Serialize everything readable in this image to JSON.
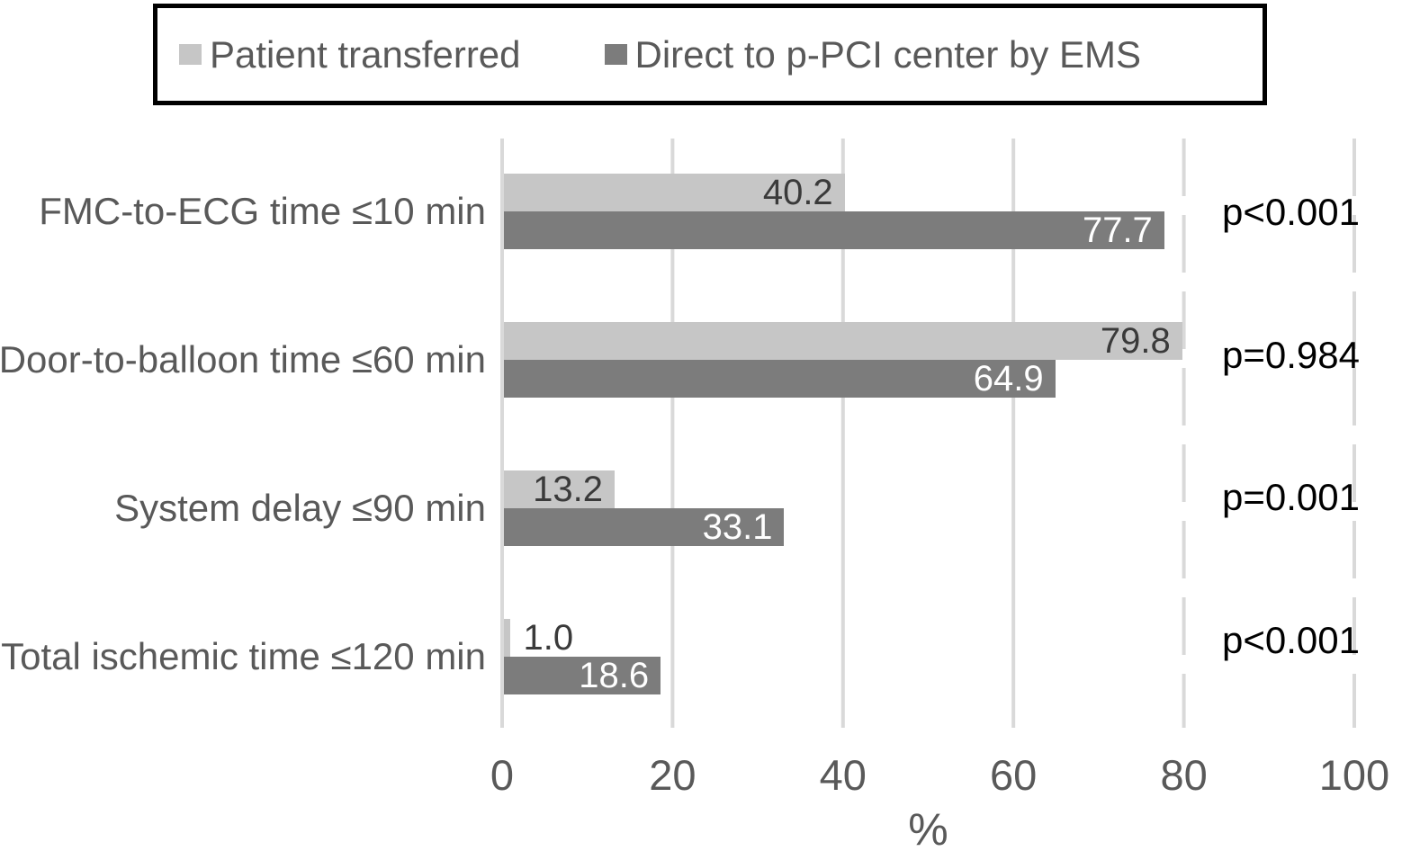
{
  "chart_data": {
    "type": "bar",
    "orientation": "horizontal",
    "categories": [
      "FMC-to-ECG time ≤10 min",
      "Door-to-balloon time ≤60 min",
      "System delay ≤90 min",
      "Total ischemic time ≤120 min"
    ],
    "series": [
      {
        "name": "Patient transferred",
        "color": "#c6c6c6",
        "value_label_color": "#3a3a3a",
        "values": [
          40.2,
          79.8,
          13.2,
          1.0
        ]
      },
      {
        "name": "Direct to p-PCI center by EMS",
        "color": "#7c7c7c",
        "value_label_color": "#ffffff",
        "values": [
          77.7,
          64.9,
          33.1,
          18.6
        ]
      }
    ],
    "p_values": [
      "p<0.001",
      "p=0.984",
      "p=0.001",
      "p<0.001"
    ],
    "xlabel": "%",
    "xlim": [
      0,
      100
    ],
    "xticks": [
      0,
      20,
      40,
      60,
      80,
      100
    ],
    "xtick_labels": [
      "0",
      "20",
      "40",
      "60",
      "80",
      "100"
    ],
    "grid": {
      "show": true,
      "color": "#d9d9d9",
      "solid_ticks": [
        0,
        20,
        40,
        60
      ],
      "dashed_ticks": [
        80,
        100
      ]
    },
    "legend_position": "top",
    "axis_text_color": "#595959",
    "p_value_color": "#000000"
  }
}
